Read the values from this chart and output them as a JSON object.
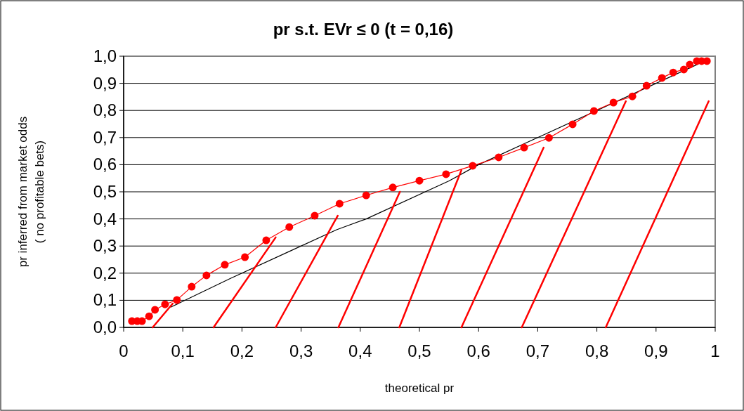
{
  "chart_data": {
    "type": "line",
    "title": "pr s.t. EVr ≤ 0 (t = 0,16)",
    "xlabel": "theoretical pr",
    "ylabel": "pr inferred from market odds\n( no profitable bets)",
    "xlim": [
      0,
      1
    ],
    "ylim": [
      0,
      1
    ],
    "xticks": [
      0,
      {
        "value": 0.1,
        "label": "0,1"
      },
      {
        "value": 0.2,
        "label": "0,2"
      },
      {
        "value": 0.3,
        "label": "0,3"
      },
      {
        "value": 0.4,
        "label": "0,4"
      },
      {
        "value": 0.5,
        "label": "0,5"
      },
      {
        "value": 0.6,
        "label": "0,6"
      },
      {
        "value": 0.7,
        "label": "0,7"
      },
      {
        "value": 0.8,
        "label": "0,8"
      },
      {
        "value": 0.9,
        "label": "0,9"
      },
      1
    ],
    "yticks": [
      {
        "value": 0,
        "label": "0,0"
      },
      {
        "value": 0.1,
        "label": "0,1"
      },
      {
        "value": 0.2,
        "label": "0,2"
      },
      {
        "value": 0.3,
        "label": "0,3"
      },
      {
        "value": 0.4,
        "label": "0,4"
      },
      {
        "value": 0.5,
        "label": "0,5"
      },
      {
        "value": 0.6,
        "label": "0,6"
      },
      {
        "value": 0.7,
        "label": "0,7"
      },
      {
        "value": 0.8,
        "label": "0,8"
      },
      {
        "value": 0.9,
        "label": "0,9"
      },
      {
        "value": 1,
        "label": "1,0"
      }
    ],
    "grid": "y",
    "series": [
      {
        "color": "#000000",
        "marker": "none",
        "x": [
          0.08,
          0.18,
          0.28,
          0.36,
          0.41,
          0.55,
          0.6,
          0.97
        ],
        "values": [
          0.075,
          0.18,
          0.28,
          0.36,
          0.4,
          0.54,
          0.6,
          0.97
        ]
      },
      {
        "color": "#ff0000",
        "marker": "none",
        "x": [
          0.049,
          0.083
        ],
        "values": [
          0,
          0.088
        ]
      },
      {
        "color": "#ff0000",
        "marker": "none",
        "x": [
          0.152,
          0.257
        ],
        "values": [
          0,
          0.332
        ]
      },
      {
        "color": "#ff0000",
        "marker": "none",
        "x": [
          0.257,
          0.362
        ],
        "values": [
          0,
          0.412
        ]
      },
      {
        "color": "#ff0000",
        "marker": "none",
        "x": [
          0.363,
          0.467
        ],
        "values": [
          0,
          0.5
        ]
      },
      {
        "color": "#ff0000",
        "marker": "none",
        "x": [
          0.466,
          0.571
        ],
        "values": [
          0,
          0.58
        ]
      },
      {
        "color": "#ff0000",
        "marker": "none",
        "x": [
          0.571,
          0.71
        ],
        "values": [
          0,
          0.663
        ]
      },
      {
        "color": "#ff0000",
        "marker": "none",
        "x": [
          0.673,
          0.849
        ],
        "values": [
          0,
          0.834
        ]
      },
      {
        "color": "#ff0000",
        "marker": "none",
        "x": [
          0.815,
          0.989
        ],
        "values": [
          0,
          0.834
        ]
      },
      {
        "color": "#ff0000",
        "marker": "circle",
        "x": [
          0.014,
          0.023,
          0.031,
          0.043,
          0.053,
          0.07,
          0.09,
          0.115,
          0.14,
          0.171,
          0.205,
          0.241,
          0.28,
          0.323,
          0.365,
          0.41,
          0.455,
          0.5,
          0.545,
          0.59,
          0.634,
          0.677,
          0.719,
          0.759,
          0.795,
          0.828,
          0.86,
          0.884,
          0.91,
          0.929,
          0.947,
          0.957,
          0.969,
          0.977,
          0.986
        ],
        "values": [
          0.023,
          0.023,
          0.023,
          0.041,
          0.065,
          0.085,
          0.101,
          0.15,
          0.192,
          0.231,
          0.259,
          0.321,
          0.37,
          0.412,
          0.456,
          0.487,
          0.516,
          0.541,
          0.565,
          0.596,
          0.627,
          0.663,
          0.699,
          0.749,
          0.798,
          0.829,
          0.852,
          0.891,
          0.92,
          0.94,
          0.951,
          0.969,
          0.982,
          0.982,
          0.982
        ]
      }
    ]
  }
}
